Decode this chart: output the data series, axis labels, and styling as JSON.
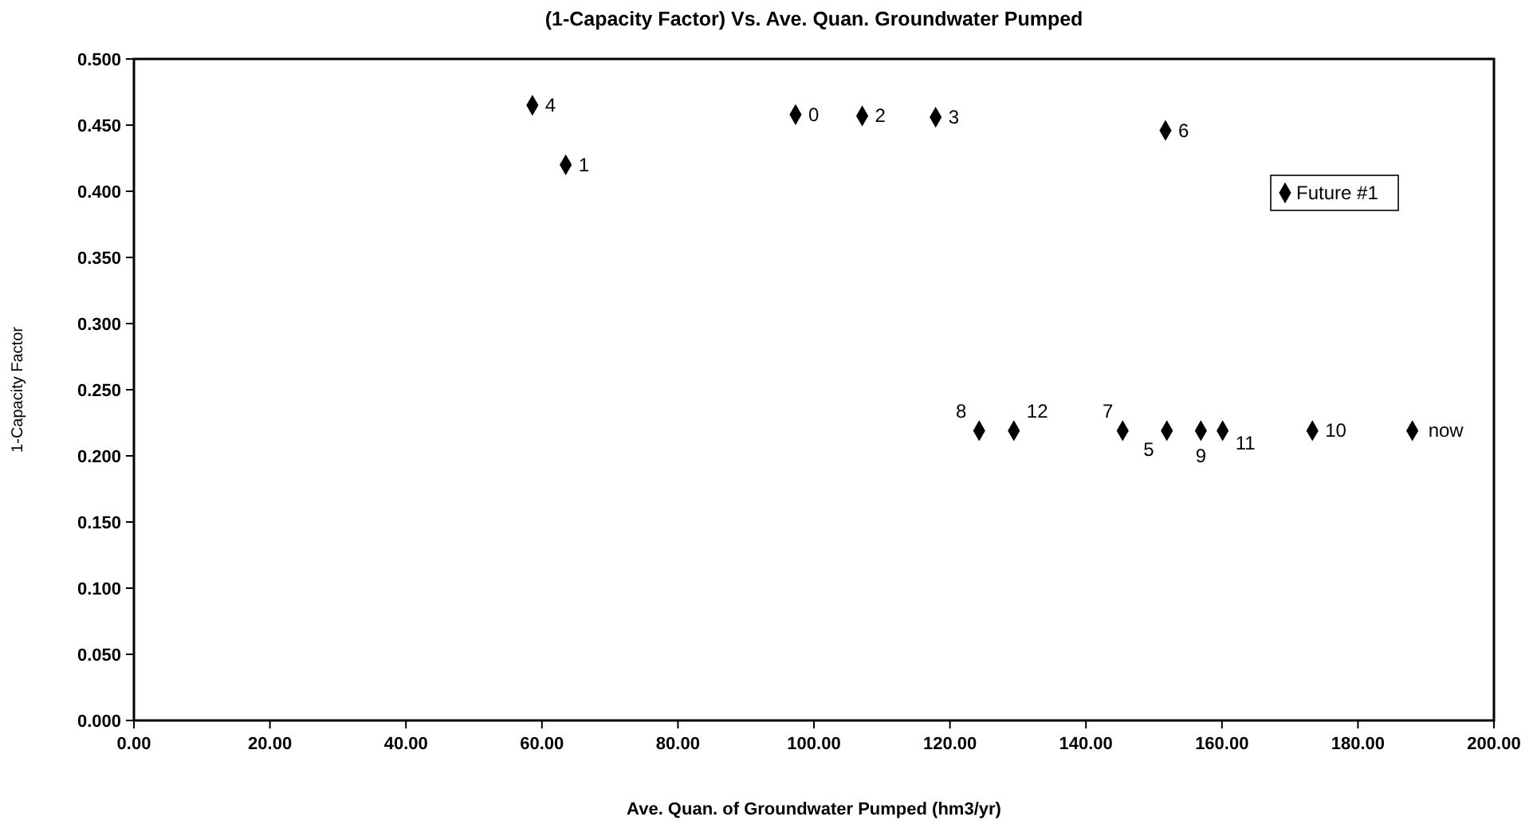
{
  "chart_data": {
    "type": "scatter",
    "title": "(1-Capacity Factor) Vs. Ave. Quan. Groundwater Pumped",
    "xlabel": "Ave. Quan. of Groundwater Pumped (hm3/yr)",
    "ylabel": "1-Capacity Factor",
    "x": [
      97.3,
      63.5,
      107.1,
      117.9,
      58.6,
      151.9,
      151.7,
      145.4,
      124.3,
      156.9,
      173.3,
      160.1,
      129.4,
      188.0
    ],
    "series": [
      {
        "name": "Future #1",
        "color": "#000000",
        "values": [
          0.458,
          0.42,
          0.457,
          0.456,
          0.465,
          0.219,
          0.446,
          0.219,
          0.219,
          0.219,
          0.219,
          0.219,
          0.219,
          0.219
        ]
      }
    ],
    "annotations": [
      {
        "text": "0",
        "x": 97.3,
        "y": 0.458
      },
      {
        "text": "1",
        "x": 63.5,
        "y": 0.42
      },
      {
        "text": "2",
        "x": 107.1,
        "y": 0.457
      },
      {
        "text": "3",
        "x": 117.9,
        "y": 0.456
      },
      {
        "text": "4",
        "x": 58.6,
        "y": 0.465
      },
      {
        "text": "5",
        "x": 151.9,
        "y": 0.219
      },
      {
        "text": "6",
        "x": 151.7,
        "y": 0.446
      },
      {
        "text": "7",
        "x": 145.4,
        "y": 0.219
      },
      {
        "text": "8",
        "x": 124.3,
        "y": 0.219
      },
      {
        "text": "9",
        "x": 156.9,
        "y": 0.219
      },
      {
        "text": "10",
        "x": 173.3,
        "y": 0.219
      },
      {
        "text": "11",
        "x": 160.1,
        "y": 0.219
      },
      {
        "text": "12",
        "x": 129.4,
        "y": 0.219
      },
      {
        "text": "now",
        "x": 188.0,
        "y": 0.219
      }
    ],
    "xlim": [
      0,
      200
    ],
    "xticks": [
      {
        "value": 0,
        "label": "0.00"
      },
      {
        "value": 20,
        "label": "20.00"
      },
      {
        "value": 40,
        "label": "40.00"
      },
      {
        "value": 60,
        "label": "60.00"
      },
      {
        "value": 80,
        "label": "80.00"
      },
      {
        "value": 100,
        "label": "100.00"
      },
      {
        "value": 120,
        "label": "120.00"
      },
      {
        "value": 140,
        "label": "140.00"
      },
      {
        "value": 160,
        "label": "160.00"
      },
      {
        "value": 180,
        "label": "180.00"
      },
      {
        "value": 200,
        "label": "200.00"
      }
    ],
    "ylim": [
      0,
      0.5
    ],
    "yticks": [
      {
        "value": 0,
        "label": "0.000"
      },
      {
        "value": 0.05,
        "label": "0.050"
      },
      {
        "value": 0.1,
        "label": "0.100"
      },
      {
        "value": 0.15,
        "label": "0.150"
      },
      {
        "value": 0.2,
        "label": "0.200"
      },
      {
        "value": 0.25,
        "label": "0.250"
      },
      {
        "value": 0.3,
        "label": "0.300"
      },
      {
        "value": 0.35,
        "label": "0.350"
      },
      {
        "value": 0.4,
        "label": "0.400"
      },
      {
        "value": 0.45,
        "label": "0.450"
      },
      {
        "value": 0.5,
        "label": "0.500"
      }
    ],
    "marker": "diamond",
    "legend": "right",
    "grid": false
  }
}
